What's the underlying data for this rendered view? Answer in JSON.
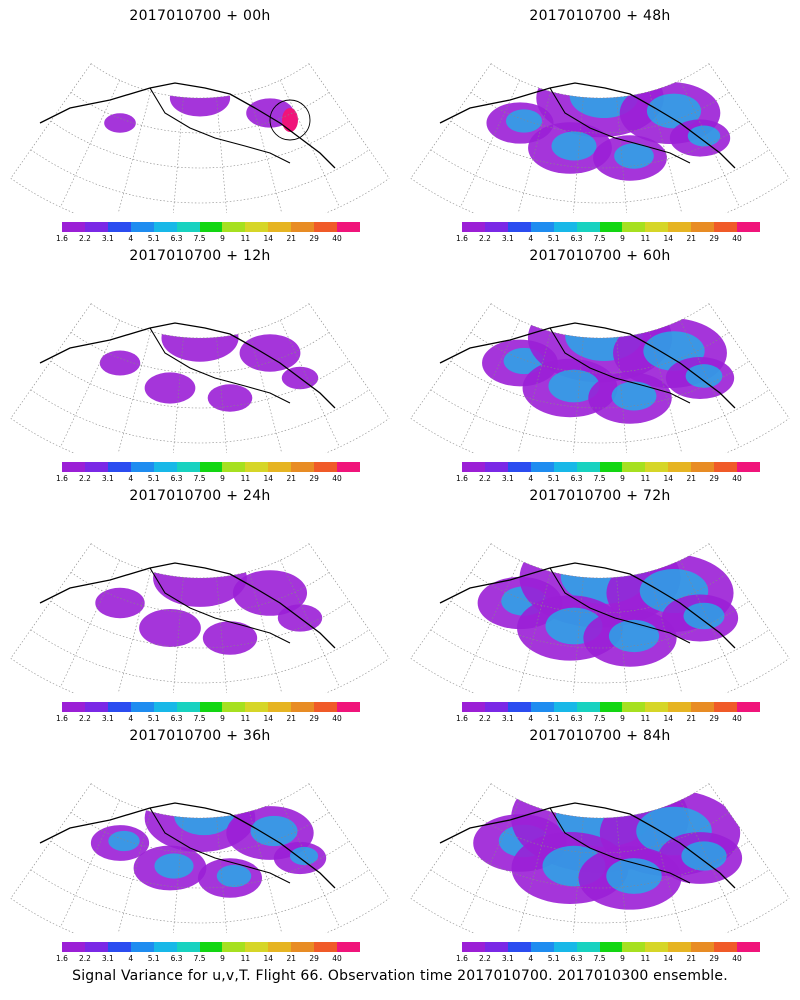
{
  "panels": [
    {
      "title": "2017010700  + 00h",
      "lead": 0
    },
    {
      "title": "2017010700  + 48h",
      "lead": 48
    },
    {
      "title": "2017010700  + 12h",
      "lead": 12
    },
    {
      "title": "2017010700  + 60h",
      "lead": 60
    },
    {
      "title": "2017010700  + 24h",
      "lead": 24
    },
    {
      "title": "2017010700  + 72h",
      "lead": 72
    },
    {
      "title": "2017010700  + 36h",
      "lead": 36
    },
    {
      "title": "2017010700  + 84h",
      "lead": 84
    }
  ],
  "colorbar": {
    "labels": [
      "1.6",
      "2.2",
      "3.1",
      "4",
      "5.1",
      "6.3",
      "7.5",
      "9",
      "11",
      "14",
      "21",
      "29",
      "40"
    ],
    "colors": [
      "#9b1fd6",
      "#7a28e6",
      "#2a4cf0",
      "#1e8cf0",
      "#18b8e8",
      "#18d2c0",
      "#12d612",
      "#a6e020",
      "#d6d628",
      "#e6b422",
      "#e88c24",
      "#f05a28",
      "#f0147a"
    ]
  },
  "caption": "Signal Variance for u,v,T. Flight 66. Observation time 2017010700. 2017010300 ensemble."
}
